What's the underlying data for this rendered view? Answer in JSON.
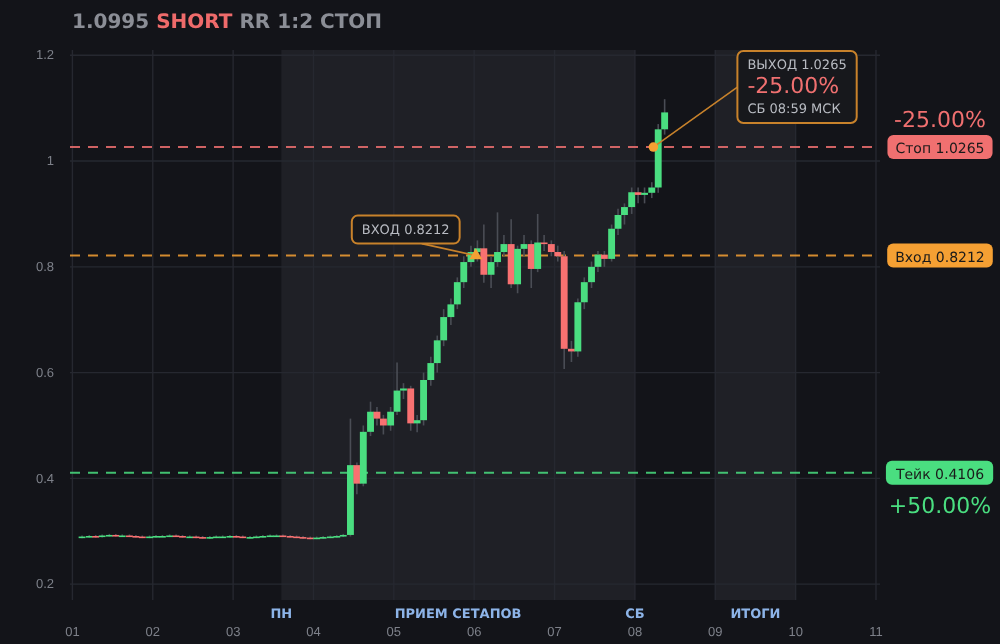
{
  "chart_data": {
    "type": "candlestick",
    "title": "1.0995 SHORT RR 1:2 СТОП",
    "x": [
      1.12,
      1.21,
      1.29,
      1.37,
      1.46,
      1.54,
      1.62,
      1.71,
      1.79,
      1.87,
      1.96,
      2.04,
      2.12,
      2.21,
      2.29,
      2.37,
      2.46,
      2.54,
      2.62,
      2.71,
      2.79,
      2.87,
      2.96,
      3.04,
      3.12,
      3.21,
      3.29,
      3.37,
      3.46,
      3.54,
      3.62,
      3.71,
      3.79,
      3.87,
      3.96,
      4.04,
      4.12,
      4.21,
      4.29,
      4.37,
      4.46,
      4.54,
      4.62,
      4.71,
      4.79,
      4.87,
      4.96,
      5.04,
      5.12,
      5.21,
      5.29,
      5.37,
      5.46,
      5.54,
      5.62,
      5.71,
      5.79,
      5.87,
      5.96,
      6.04,
      6.12,
      6.21,
      6.29,
      6.37,
      6.46,
      6.54,
      6.62,
      6.71,
      6.79,
      6.87,
      6.96,
      7.04,
      7.12,
      7.21,
      7.29,
      7.37,
      7.46,
      7.54,
      7.62,
      7.71,
      7.79,
      7.87,
      7.96,
      8.04,
      8.12,
      8.21,
      8.29,
      8.37
    ],
    "ohlc": [
      [
        0.289,
        0.292,
        0.287,
        0.29
      ],
      [
        0.29,
        0.293,
        0.288,
        0.291
      ],
      [
        0.291,
        0.293,
        0.288,
        0.29
      ],
      [
        0.29,
        0.294,
        0.288,
        0.292
      ],
      [
        0.292,
        0.295,
        0.29,
        0.293
      ],
      [
        0.293,
        0.295,
        0.29,
        0.292
      ],
      [
        0.292,
        0.294,
        0.29,
        0.292
      ],
      [
        0.292,
        0.294,
        0.289,
        0.291
      ],
      [
        0.291,
        0.293,
        0.288,
        0.29
      ],
      [
        0.29,
        0.292,
        0.287,
        0.289
      ],
      [
        0.289,
        0.292,
        0.287,
        0.29
      ],
      [
        0.29,
        0.293,
        0.288,
        0.291
      ],
      [
        0.291,
        0.293,
        0.289,
        0.291
      ],
      [
        0.291,
        0.294,
        0.289,
        0.292
      ],
      [
        0.292,
        0.294,
        0.289,
        0.291
      ],
      [
        0.291,
        0.293,
        0.288,
        0.29
      ],
      [
        0.29,
        0.292,
        0.288,
        0.29
      ],
      [
        0.29,
        0.292,
        0.287,
        0.289
      ],
      [
        0.289,
        0.291,
        0.286,
        0.288
      ],
      [
        0.288,
        0.291,
        0.286,
        0.289
      ],
      [
        0.289,
        0.292,
        0.287,
        0.29
      ],
      [
        0.29,
        0.292,
        0.288,
        0.29
      ],
      [
        0.29,
        0.293,
        0.288,
        0.291
      ],
      [
        0.291,
        0.293,
        0.288,
        0.29
      ],
      [
        0.29,
        0.292,
        0.287,
        0.289
      ],
      [
        0.289,
        0.291,
        0.287,
        0.289
      ],
      [
        0.289,
        0.292,
        0.287,
        0.29
      ],
      [
        0.29,
        0.293,
        0.288,
        0.291
      ],
      [
        0.291,
        0.294,
        0.289,
        0.292
      ],
      [
        0.292,
        0.294,
        0.29,
        0.292
      ],
      [
        0.292,
        0.294,
        0.289,
        0.291
      ],
      [
        0.291,
        0.293,
        0.288,
        0.29
      ],
      [
        0.29,
        0.292,
        0.287,
        0.289
      ],
      [
        0.289,
        0.291,
        0.286,
        0.288
      ],
      [
        0.288,
        0.29,
        0.285,
        0.287
      ],
      [
        0.287,
        0.29,
        0.285,
        0.288
      ],
      [
        0.288,
        0.291,
        0.286,
        0.289
      ],
      [
        0.289,
        0.292,
        0.287,
        0.29
      ],
      [
        0.29,
        0.293,
        0.288,
        0.291
      ],
      [
        0.291,
        0.295,
        0.289,
        0.293
      ],
      [
        0.293,
        0.513,
        0.29,
        0.425
      ],
      [
        0.425,
        0.43,
        0.37,
        0.39
      ],
      [
        0.39,
        0.5,
        0.385,
        0.488
      ],
      [
        0.488,
        0.545,
        0.48,
        0.526
      ],
      [
        0.526,
        0.535,
        0.5,
        0.513
      ],
      [
        0.513,
        0.52,
        0.483,
        0.5
      ],
      [
        0.5,
        0.535,
        0.49,
        0.526
      ],
      [
        0.526,
        0.619,
        0.52,
        0.566
      ],
      [
        0.566,
        0.58,
        0.55,
        0.57
      ],
      [
        0.57,
        0.575,
        0.49,
        0.504
      ],
      [
        0.504,
        0.52,
        0.487,
        0.51
      ],
      [
        0.51,
        0.6,
        0.5,
        0.586
      ],
      [
        0.586,
        0.63,
        0.575,
        0.618
      ],
      [
        0.618,
        0.67,
        0.6,
        0.661
      ],
      [
        0.661,
        0.72,
        0.65,
        0.705
      ],
      [
        0.705,
        0.74,
        0.69,
        0.729
      ],
      [
        0.729,
        0.78,
        0.72,
        0.771
      ],
      [
        0.771,
        0.82,
        0.76,
        0.809
      ],
      [
        0.809,
        0.84,
        0.8,
        0.828
      ],
      [
        0.828,
        0.85,
        0.81,
        0.835
      ],
      [
        0.835,
        0.88,
        0.77,
        0.785
      ],
      [
        0.785,
        0.82,
        0.76,
        0.809
      ],
      [
        0.809,
        0.903,
        0.8,
        0.828
      ],
      [
        0.828,
        0.86,
        0.82,
        0.843
      ],
      [
        0.843,
        0.89,
        0.76,
        0.767
      ],
      [
        0.767,
        0.84,
        0.75,
        0.834
      ],
      [
        0.834,
        0.86,
        0.82,
        0.843
      ],
      [
        0.843,
        0.85,
        0.76,
        0.796
      ],
      [
        0.796,
        0.9,
        0.79,
        0.846
      ],
      [
        0.846,
        0.86,
        0.83,
        0.843
      ],
      [
        0.843,
        0.85,
        0.82,
        0.828
      ],
      [
        0.828,
        0.84,
        0.81,
        0.82
      ],
      [
        0.82,
        0.83,
        0.607,
        0.645
      ],
      [
        0.645,
        0.66,
        0.62,
        0.64
      ],
      [
        0.64,
        0.74,
        0.63,
        0.733
      ],
      [
        0.733,
        0.78,
        0.72,
        0.771
      ],
      [
        0.771,
        0.81,
        0.76,
        0.8
      ],
      [
        0.8,
        0.83,
        0.79,
        0.823
      ],
      [
        0.823,
        0.83,
        0.8,
        0.815
      ],
      [
        0.815,
        0.88,
        0.81,
        0.872
      ],
      [
        0.872,
        0.91,
        0.86,
        0.898
      ],
      [
        0.898,
        0.92,
        0.88,
        0.913
      ],
      [
        0.913,
        0.95,
        0.9,
        0.941
      ],
      [
        0.941,
        0.95,
        0.92,
        0.936
      ],
      [
        0.936,
        0.95,
        0.92,
        0.94
      ],
      [
        0.94,
        0.96,
        0.93,
        0.95
      ],
      [
        0.95,
        1.07,
        0.94,
        1.06
      ],
      [
        1.06,
        1.117,
        1.05,
        1.092
      ]
    ],
    "xlim": [
      0.97,
      11.05
    ],
    "ylim": [
      0.17,
      1.21
    ],
    "xticks": [
      {
        "value": 1,
        "label": "01"
      },
      {
        "value": 2,
        "label": "02"
      },
      {
        "value": 3,
        "label": "03"
      },
      {
        "value": 4,
        "label": "04"
      },
      {
        "value": 5,
        "label": "05"
      },
      {
        "value": 6,
        "label": "06"
      },
      {
        "value": 7,
        "label": "07"
      },
      {
        "value": 8,
        "label": "08"
      },
      {
        "value": 9,
        "label": "09"
      },
      {
        "value": 10,
        "label": "10"
      },
      {
        "value": 11,
        "label": "11"
      }
    ],
    "yticks": [
      0.2,
      0.4,
      0.6,
      0.8,
      1,
      1.2
    ],
    "grid": true,
    "bands": [
      {
        "axis": "x",
        "from": 3.6,
        "to": 8,
        "label": "ПРИЕМ СЕТАПОВ",
        "color": "#1f2026"
      },
      {
        "axis": "x",
        "from": 9,
        "to": 10,
        "label": "ИТОГИ",
        "color": "#1f2026"
      }
    ],
    "ref_lines": [
      {
        "axis": "y",
        "value": 1.0265,
        "label": "Стоп 1.0265",
        "color": "#f07070",
        "line_style": "dashed"
      },
      {
        "axis": "y",
        "value": 0.8212,
        "label": "Вход 0.8212",
        "color": "#f5a033",
        "line_style": "dashed"
      },
      {
        "axis": "y",
        "value": 0.4106,
        "label": "Тейк 0.4106",
        "color": "#4ade80",
        "line_style": "dashed"
      }
    ],
    "annotations": [
      {
        "text": "ВХОД 0.8212",
        "x": 6.02,
        "y": 0.8212
      },
      {
        "text": "ВЫХОД 1.0265\n-25.00%\nСБ 08:59 МСК",
        "x": 8.23,
        "y": 1.0265
      },
      "-25.00%",
      "+50.00%",
      "ПН",
      "СБ"
    ]
  }
}
